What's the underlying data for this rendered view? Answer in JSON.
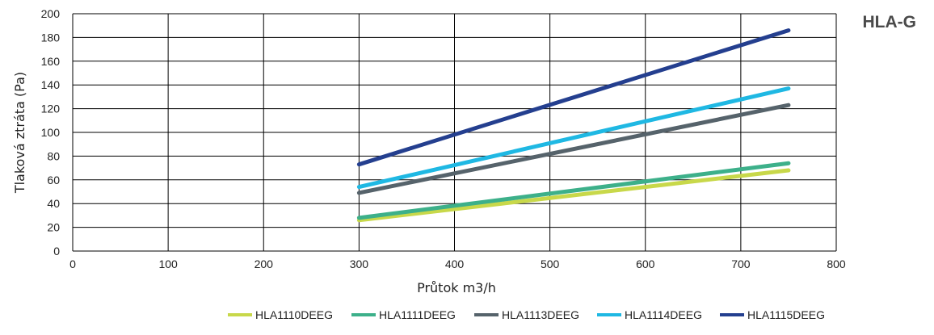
{
  "chart_data": {
    "type": "line",
    "badge": "HLA-G",
    "xlabel": "Průtok m3/h",
    "ylabel": "Tlaková ztráta (Pa)",
    "xlim": [
      0,
      800
    ],
    "ylim": [
      0,
      200
    ],
    "x_ticks": [
      "0",
      "100",
      "200",
      "300",
      "400",
      "500",
      "600",
      "700",
      "800"
    ],
    "y_ticks": [
      "0",
      "20",
      "40",
      "60",
      "80",
      "100",
      "120",
      "140",
      "160",
      "180",
      "200"
    ],
    "x_tick_values": [
      0,
      100,
      200,
      300,
      400,
      500,
      600,
      700,
      800
    ],
    "y_tick_values": [
      0,
      20,
      40,
      60,
      80,
      100,
      120,
      140,
      160,
      180,
      200
    ],
    "grid": true,
    "legend_position": "bottom",
    "series": [
      {
        "name": "HLA1110DEEG",
        "color": "#c8d84a",
        "x": [
          300,
          750
        ],
        "y": [
          26,
          68
        ]
      },
      {
        "name": "HLA1111DEEG",
        "color": "#3db08a",
        "x": [
          300,
          750
        ],
        "y": [
          28,
          74
        ]
      },
      {
        "name": "HLA1113DEEG",
        "color": "#56636b",
        "x": [
          300,
          750
        ],
        "y": [
          49,
          123
        ]
      },
      {
        "name": "HLA1114DEEG",
        "color": "#1fb8e3",
        "x": [
          300,
          750
        ],
        "y": [
          54,
          137
        ]
      },
      {
        "name": "HLA1115DEEG",
        "color": "#243f8f",
        "x": [
          300,
          750
        ],
        "y": [
          73,
          186
        ]
      }
    ]
  }
}
